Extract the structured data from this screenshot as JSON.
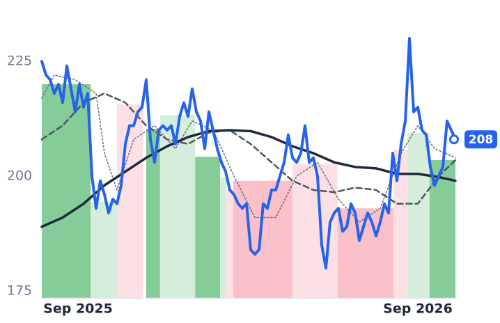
{
  "chart_data": {
    "type": "line",
    "xlim": [
      0,
      99
    ],
    "ylim": [
      173.5,
      235
    ],
    "yticks": [
      175,
      200,
      225
    ],
    "xticks": [
      {
        "value": 8.67,
        "label": "Sep 2025"
      },
      {
        "value": 90,
        "label": "Sep 2026"
      }
    ],
    "grid": false,
    "bands": [
      {
        "start": 0,
        "end": 11.7,
        "top": 220,
        "color": "#86cc98"
      },
      {
        "start": 11.7,
        "end": 18,
        "top": 194.4,
        "color": "#d5eedb"
      },
      {
        "start": 18,
        "end": 24.2,
        "top": 215.6,
        "color": "#fde0e6"
      },
      {
        "start": 25,
        "end": 28.3,
        "top": 210.3,
        "color": "#86cc98"
      },
      {
        "start": 28.3,
        "end": 36.7,
        "top": 213.3,
        "color": "#d5eedb"
      },
      {
        "start": 36.7,
        "end": 42.7,
        "top": 204.2,
        "color": "#86cc98"
      },
      {
        "start": 42.7,
        "end": 44.2,
        "top": 199.7,
        "color": "#d5eedb"
      },
      {
        "start": 44.2,
        "end": 45.8,
        "top": 197,
        "color": "#fde0e6"
      },
      {
        "start": 45.8,
        "end": 60,
        "top": 199,
        "color": "#f9c0ca"
      },
      {
        "start": 60,
        "end": 70.8,
        "top": 202.7,
        "color": "#fde0e6"
      },
      {
        "start": 70.8,
        "end": 84.2,
        "top": 193,
        "color": "#f9c0ca"
      },
      {
        "start": 84.2,
        "end": 87.5,
        "top": 205.8,
        "color": "#fde0e6"
      },
      {
        "start": 87.5,
        "end": 92.8,
        "top": 209.5,
        "color": "#d5eedb"
      },
      {
        "start": 92.8,
        "end": 99,
        "top": 203.5,
        "color": "#86cc98"
      }
    ],
    "series": [
      {
        "color": "#2563eb",
        "style": "solid",
        "width": 4,
        "values": [
          225,
          222,
          221,
          218,
          220,
          216,
          224,
          219,
          214,
          220,
          215,
          218,
          200,
          193,
          199,
          196,
          192,
          195,
          194,
          198,
          207,
          211,
          211,
          214,
          215,
          221,
          208,
          203,
          210,
          211,
          210,
          211,
          207,
          213,
          216,
          213,
          219,
          214,
          212,
          206,
          214,
          210,
          206,
          203,
          201,
          197,
          196,
          194,
          193,
          194,
          184,
          183,
          184,
          194,
          193,
          197,
          197,
          200,
          203,
          209,
          204,
          203,
          205,
          211,
          203,
          204,
          200,
          185,
          180,
          190,
          192,
          193,
          188,
          189,
          194,
          192,
          186,
          189,
          192,
          190,
          187,
          190,
          194,
          192,
          205,
          199,
          207,
          212,
          230,
          214,
          215,
          210,
          209,
          202,
          198,
          200,
          202,
          212,
          210,
          208
        ]
      },
      {
        "color": "#1e293b",
        "style": "solid",
        "width": 3.5,
        "x": [
          0,
          5,
          10,
          15,
          20,
          25,
          30,
          35,
          40,
          45,
          50,
          55,
          60,
          65,
          70,
          75,
          80,
          85,
          90,
          95,
          99
        ],
        "values": [
          189,
          191,
          194,
          198,
          201,
          204,
          206.5,
          208.5,
          209.8,
          210,
          209.8,
          208.5,
          206.5,
          205,
          203,
          202,
          201.7,
          200.5,
          200.5,
          199.8,
          199
        ]
      },
      {
        "color": "#4b5563",
        "style": "dashed",
        "width": 2.5,
        "x": [
          0,
          5,
          10,
          15,
          20,
          25,
          30,
          35,
          40,
          45,
          50,
          55,
          60,
          65,
          70,
          75,
          80,
          85,
          90,
          95,
          99
        ],
        "values": [
          208,
          211,
          216,
          218,
          216,
          211,
          208,
          207,
          209.5,
          210,
          207,
          203,
          199,
          197,
          196.5,
          197.5,
          197,
          194,
          194,
          200,
          203.5
        ]
      },
      {
        "color": "#6b7280",
        "style": "dotted",
        "width": 1.6,
        "x": [
          0,
          3,
          8,
          13,
          15,
          18,
          22,
          27,
          32,
          36,
          41,
          46,
          51,
          56,
          61,
          66,
          71,
          76,
          81,
          86,
          90,
          94,
          99
        ],
        "values": [
          217,
          222,
          221,
          218,
          205,
          197,
          208,
          211,
          206,
          212,
          210,
          200,
          191,
          191,
          200,
          203,
          195,
          190,
          193,
          205,
          211,
          206,
          204
        ]
      }
    ]
  }
}
